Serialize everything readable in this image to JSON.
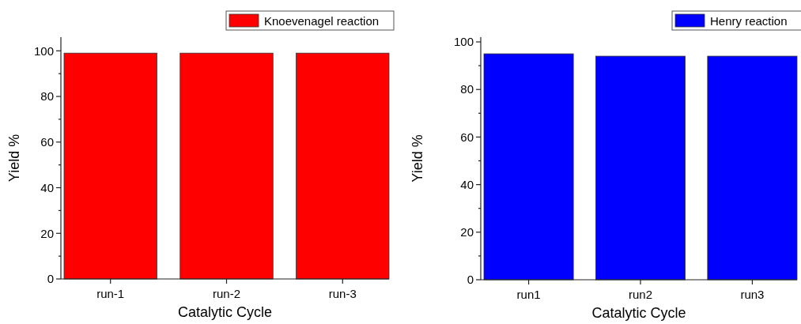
{
  "chart_data": [
    {
      "type": "bar",
      "xlabel": "Catalytic Cycle",
      "ylabel": "Yield %",
      "categories": [
        "run-1",
        "run-2",
        "run-3"
      ],
      "series": [
        {
          "name": "Knoevenagel reaction",
          "color": "#ff0000",
          "values": [
            99,
            99,
            99
          ]
        }
      ],
      "ylim": [
        0,
        106
      ],
      "yticks": [
        0,
        {
          "value": 10,
          "label": null
        },
        20,
        {
          "value": 30,
          "label": null
        },
        40,
        {
          "value": 50,
          "label": null
        },
        60,
        {
          "value": 70,
          "label": null
        },
        80,
        {
          "value": 90,
          "label": null
        },
        100
      ],
      "legend": "top right",
      "grid": false
    },
    {
      "type": "bar",
      "xlabel": "Catalytic Cycle",
      "ylabel": "Yield %",
      "categories": [
        "run1",
        "run2",
        "run3"
      ],
      "series": [
        {
          "name": "Henry reaction",
          "color": "#0000ff",
          "values": [
            95,
            94,
            94
          ]
        }
      ],
      "ylim": [
        0,
        102
      ],
      "yticks": [
        0,
        {
          "value": 10,
          "label": null
        },
        20,
        {
          "value": 30,
          "label": null
        },
        40,
        {
          "value": 50,
          "label": null
        },
        60,
        {
          "value": 70,
          "label": null
        },
        80,
        {
          "value": 90,
          "label": null
        },
        100
      ],
      "legend": "top right",
      "grid": false
    }
  ]
}
